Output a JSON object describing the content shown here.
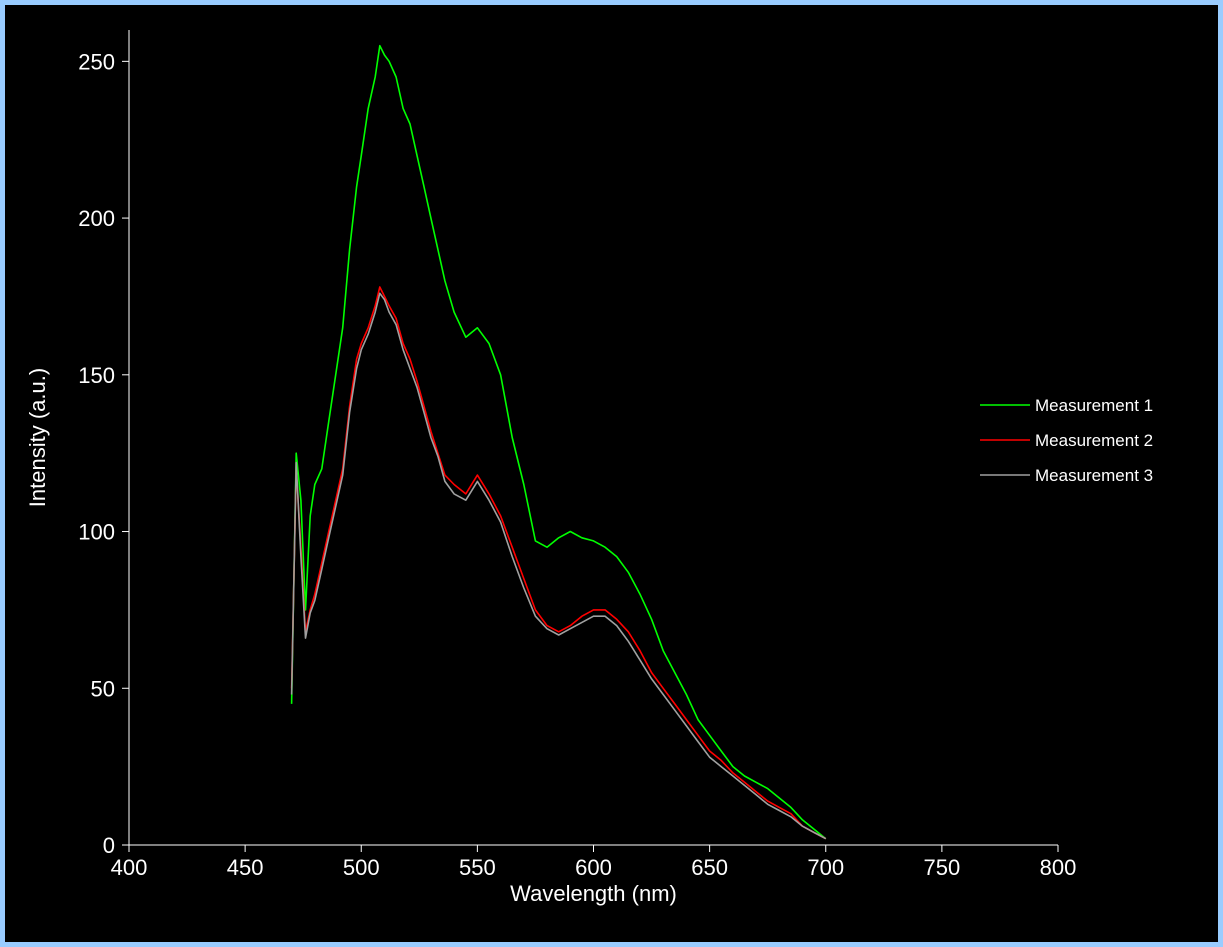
{
  "chart_data": {
    "type": "line",
    "title": "",
    "xlabel": "Wavelength (nm)",
    "ylabel": "Intensity (a.u.)",
    "xlim": [
      400,
      800
    ],
    "ylim": [
      0,
      260
    ],
    "x_ticks": [
      "400",
      "450",
      "500",
      "550",
      "600",
      "650",
      "700",
      "750",
      "800"
    ],
    "y_ticks": [
      "0",
      "50",
      "100",
      "150",
      "200",
      "250"
    ],
    "grid": false,
    "legend": "right",
    "series": [
      {
        "name": "Measurement 1",
        "color": "#00ff00",
        "x": [
          470,
          472,
          474,
          476,
          478,
          480,
          483,
          486,
          489,
          492,
          495,
          498,
          500,
          503,
          506,
          508,
          510,
          512,
          515,
          518,
          521,
          524,
          527,
          530,
          533,
          536,
          540,
          545,
          550,
          555,
          560,
          565,
          570,
          575,
          580,
          585,
          590,
          595,
          600,
          605,
          610,
          615,
          620,
          625,
          630,
          635,
          640,
          645,
          650,
          655,
          660,
          665,
          670,
          675,
          680,
          685,
          690,
          695,
          700
        ],
        "y": [
          45,
          125,
          110,
          75,
          105,
          115,
          120,
          135,
          150,
          165,
          190,
          210,
          220,
          235,
          245,
          255,
          252,
          250,
          245,
          235,
          230,
          220,
          210,
          200,
          190,
          180,
          170,
          162,
          165,
          160,
          150,
          130,
          115,
          97,
          95,
          98,
          100,
          98,
          97,
          95,
          92,
          87,
          80,
          72,
          62,
          55,
          48,
          40,
          35,
          30,
          25,
          22,
          20,
          18,
          15,
          12,
          8,
          5,
          2
        ]
      },
      {
        "name": "Measurement 2",
        "color": "#ff0000",
        "x": [
          470,
          472,
          474,
          476,
          478,
          480,
          483,
          486,
          489,
          492,
          495,
          498,
          500,
          503,
          506,
          508,
          510,
          512,
          515,
          518,
          521,
          524,
          527,
          530,
          533,
          536,
          540,
          545,
          550,
          555,
          560,
          565,
          570,
          575,
          580,
          585,
          590,
          595,
          600,
          605,
          610,
          615,
          620,
          625,
          630,
          635,
          640,
          645,
          650,
          655,
          660,
          665,
          670,
          675,
          680,
          685,
          690,
          695,
          700
        ],
        "y": [
          50,
          120,
          95,
          68,
          75,
          80,
          90,
          100,
          110,
          120,
          140,
          155,
          160,
          165,
          172,
          178,
          175,
          172,
          168,
          160,
          155,
          148,
          140,
          132,
          125,
          118,
          115,
          112,
          118,
          112,
          105,
          95,
          85,
          75,
          70,
          68,
          70,
          73,
          75,
          75,
          72,
          68,
          62,
          55,
          50,
          45,
          40,
          35,
          30,
          27,
          23,
          20,
          17,
          14,
          12,
          10,
          6,
          4,
          2
        ]
      },
      {
        "name": "Measurement 3",
        "color": "#a0a0a0",
        "x": [
          470,
          472,
          474,
          476,
          478,
          480,
          483,
          486,
          489,
          492,
          495,
          498,
          500,
          503,
          506,
          508,
          510,
          512,
          515,
          518,
          521,
          524,
          527,
          530,
          533,
          536,
          540,
          545,
          550,
          555,
          560,
          565,
          570,
          575,
          580,
          585,
          590,
          595,
          600,
          605,
          610,
          615,
          620,
          625,
          630,
          635,
          640,
          645,
          650,
          655,
          660,
          665,
          670,
          675,
          680,
          685,
          690,
          695,
          700
        ],
        "y": [
          48,
          122,
          92,
          66,
          74,
          78,
          88,
          98,
          108,
          118,
          138,
          152,
          158,
          163,
          170,
          176,
          174,
          170,
          166,
          158,
          152,
          146,
          138,
          130,
          124,
          116,
          112,
          110,
          116,
          110,
          103,
          92,
          82,
          73,
          69,
          67,
          69,
          71,
          73,
          73,
          70,
          65,
          59,
          53,
          48,
          43,
          38,
          33,
          28,
          25,
          22,
          19,
          16,
          13,
          11,
          9,
          6,
          4,
          2
        ]
      }
    ]
  }
}
